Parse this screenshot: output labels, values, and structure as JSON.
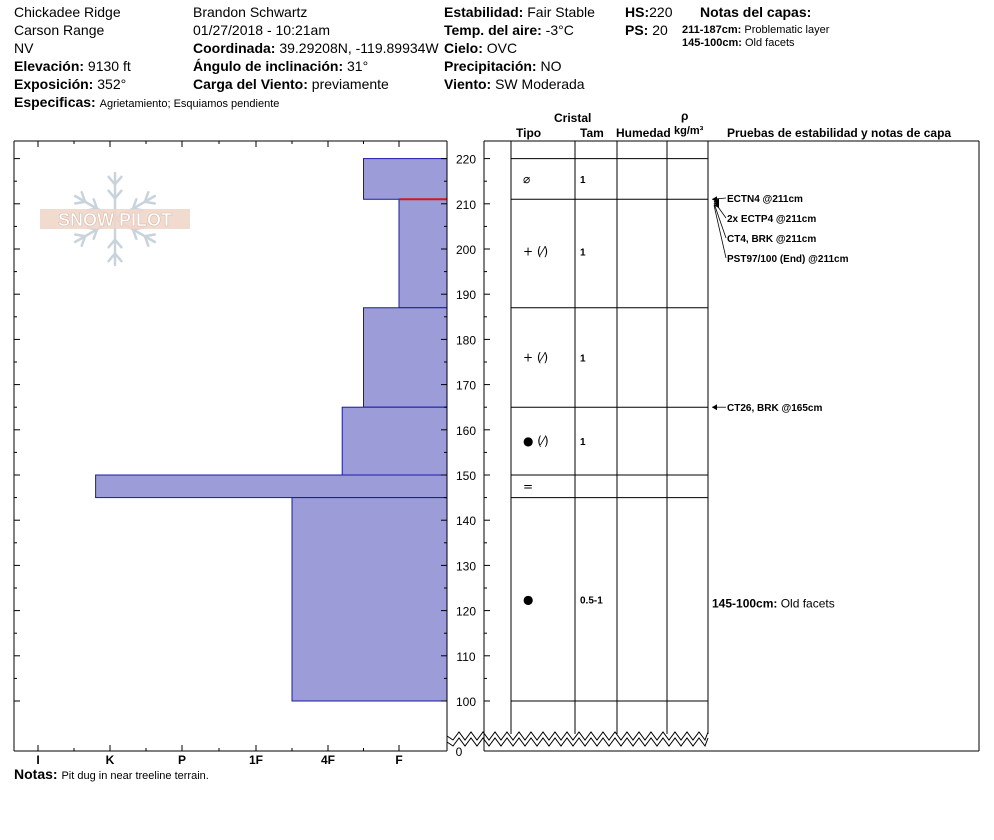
{
  "header": {
    "location": "Chickadee Ridge",
    "range": "Carson Range",
    "state": "NV",
    "elevation_label": "Elevación:",
    "elevation": "9130 ft",
    "aspect_label": "Exposición:",
    "aspect": "352°",
    "specifics_label": "Especificas:",
    "specifics": "Agrietamiento;  Esquiamos pendiente",
    "observer": "Brandon Schwartz",
    "datetime": "01/27/2018 - 10:21am",
    "coord_label": "Coordinada:",
    "coord": "39.29208N, -119.89934W",
    "slope_label": "Ángulo de inclinación:",
    "slope": "31°",
    "wind_load_label": "Carga del Viento:",
    "wind_load": "previamente",
    "stability_label": "Estabilidad:",
    "stability": "Fair Stable",
    "air_temp_label": "Temp. del aire:",
    "air_temp": "-3°C",
    "sky_label": "Cielo:",
    "sky": "OVC",
    "precip_label": "Precipitación:",
    "precip": "NO",
    "wind_label": "Viento:",
    "wind": "SW Moderada",
    "hs_label": "HS:",
    "hs": "220",
    "ps_label": "PS:",
    "ps": "20",
    "layer_notes_label": "Notas del capas:",
    "layer_notes": [
      {
        "range": "211-187cm:",
        "text": "Problematic layer"
      },
      {
        "range": "145-100cm:",
        "text": "Old facets"
      }
    ],
    "notes_label": "Notas:",
    "notes": "Pit dug in near treeline terrain."
  },
  "columns": {
    "cristal": "Cristal",
    "tipo": "Tipo",
    "tam": "Tam",
    "humedad": "Humedad",
    "rho": "ρ",
    "density_unit": "kg/m³",
    "tests": "Pruebas de estabilidad y notas de capa"
  },
  "logo_text": "SNOW PILOT",
  "chart_data": {
    "type": "bar",
    "orientation": "horizontal",
    "y_axis": {
      "ticks": [
        100,
        110,
        120,
        130,
        140,
        150,
        160,
        170,
        180,
        190,
        200,
        210,
        220
      ],
      "range": [
        97,
        224
      ],
      "break_label": "0"
    },
    "x_axis": {
      "categories": [
        "I",
        "K",
        "P",
        "1F",
        "4F",
        "F"
      ],
      "direction": "hardness decreasing to the right"
    },
    "hardness_layers": [
      {
        "top": 220,
        "bottom": 211,
        "hardness_level": 1.0
      },
      {
        "top": 211,
        "bottom": 187,
        "hardness_level": 0.5
      },
      {
        "top": 187,
        "bottom": 165,
        "hardness_level": 1.0
      },
      {
        "top": 165,
        "bottom": 150,
        "hardness_level": 1.3
      },
      {
        "top": 150,
        "bottom": 145,
        "hardness_level": 4.7
      },
      {
        "top": 145,
        "bottom": 100,
        "hardness_level": 2.0
      }
    ],
    "problematic_marker": 211,
    "layer_boundaries": [
      220,
      211,
      187,
      165,
      150,
      145,
      100
    ],
    "grains": [
      {
        "depth": 215.5,
        "tipo": "⌀",
        "tam": "1"
      },
      {
        "depth": 199.5,
        "tipo": "+ (⁄)",
        "tam": "1"
      },
      {
        "depth": 176,
        "tipo": "+ (⁄)",
        "tam": "1"
      },
      {
        "depth": 157.5,
        "tipo": "● (⁄)",
        "tam": "1"
      },
      {
        "depth": 147.5,
        "tipo": "=",
        "tam": ""
      },
      {
        "depth": 122.5,
        "tipo": "●",
        "tam": "0.5-1"
      }
    ],
    "tests": [
      {
        "depth": 211,
        "text": "ECTN4 @211cm"
      },
      {
        "depth": 211,
        "text": "2x ECTP4 @211cm"
      },
      {
        "depth": 211,
        "text": "CT4, BRK @211cm"
      },
      {
        "depth": 211,
        "text": "PST97/100 (End) @211cm"
      },
      {
        "depth": 165,
        "text": "CT26, BRK @165cm"
      }
    ],
    "layer_note": {
      "depth": 122.5,
      "range": "145-100cm:",
      "text": "Old facets"
    }
  }
}
